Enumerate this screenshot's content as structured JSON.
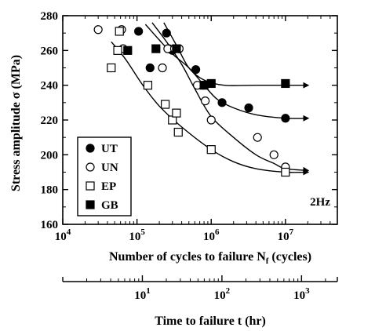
{
  "chart_data": {
    "type": "scatter",
    "title": "",
    "xlabel_text": "Number of cycles to failure N",
    "xlabel_sub": "f",
    "xlabel_unit": " (cycles)",
    "ylabel": "Stress amplitude σ (MPa)",
    "x_scale": "log",
    "xlim": [
      10000,
      50000000
    ],
    "ylim": [
      160,
      280
    ],
    "yticks": [
      160,
      180,
      200,
      220,
      240,
      260,
      280
    ],
    "xticks": [
      {
        "value": 10000,
        "base": "10",
        "exp": "4"
      },
      {
        "value": 100000,
        "base": "10",
        "exp": "5"
      },
      {
        "value": 1000000,
        "base": "10",
        "exp": "6"
      },
      {
        "value": 10000000,
        "base": "10",
        "exp": "7"
      }
    ],
    "annotation": "2Hz",
    "legend_position": "bottom-left",
    "series": [
      {
        "name": "UT",
        "marker": "filled-circle",
        "points": [
          [
            105000,
            271
          ],
          [
            250000,
            270
          ],
          [
            150000,
            250
          ],
          [
            270000,
            261
          ],
          [
            300000,
            260
          ],
          [
            620000,
            249
          ],
          [
            780000,
            240
          ],
          [
            1400000,
            230
          ],
          [
            3200000,
            227
          ],
          [
            10000000,
            221
          ]
        ],
        "runout": [
          false,
          false,
          false,
          false,
          false,
          false,
          false,
          false,
          false,
          true
        ],
        "curve": [
          [
            130000,
            275
          ],
          [
            200000,
            266
          ],
          [
            300000,
            258
          ],
          [
            500000,
            250
          ],
          [
            800000,
            240
          ],
          [
            1200000,
            232
          ],
          [
            2000000,
            227
          ],
          [
            4000000,
            223
          ],
          [
            10000000,
            221
          ],
          [
            20000000,
            221
          ]
        ]
      },
      {
        "name": "UN",
        "marker": "open-circle",
        "points": [
          [
            30000,
            272
          ],
          [
            62000,
            272
          ],
          [
            65000,
            261
          ],
          [
            220000,
            250
          ],
          [
            260000,
            261
          ],
          [
            320000,
            261
          ],
          [
            370000,
            261
          ],
          [
            650000,
            240
          ],
          [
            830000,
            231
          ],
          [
            1000000,
            220
          ],
          [
            4200000,
            210
          ],
          [
            7000000,
            200
          ],
          [
            10000000,
            193
          ]
        ],
        "runout": [
          false,
          false,
          false,
          false,
          false,
          false,
          false,
          false,
          false,
          false,
          false,
          false,
          true
        ],
        "curve": [
          [
            160000,
            276
          ],
          [
            250000,
            265
          ],
          [
            400000,
            252
          ],
          [
            600000,
            238
          ],
          [
            1000000,
            222
          ],
          [
            2000000,
            210
          ],
          [
            4000000,
            200
          ],
          [
            7000000,
            195
          ],
          [
            10000000,
            192
          ],
          [
            20000000,
            191
          ]
        ]
      },
      {
        "name": "EP",
        "marker": "open-square",
        "points": [
          [
            45000,
            250
          ],
          [
            55000,
            260
          ],
          [
            58000,
            271
          ],
          [
            140000,
            240
          ],
          [
            240000,
            229
          ],
          [
            300000,
            220
          ],
          [
            340000,
            224
          ],
          [
            360000,
            213
          ],
          [
            1000000,
            203
          ],
          [
            10000000,
            190
          ]
        ],
        "runout": [
          false,
          false,
          false,
          false,
          false,
          false,
          false,
          false,
          false,
          true
        ],
        "curve": [
          [
            45000,
            265
          ],
          [
            70000,
            255
          ],
          [
            120000,
            240
          ],
          [
            200000,
            228
          ],
          [
            400000,
            216
          ],
          [
            1000000,
            203
          ],
          [
            2000000,
            196
          ],
          [
            4000000,
            192
          ],
          [
            10000000,
            190
          ],
          [
            20000000,
            190
          ]
        ]
      },
      {
        "name": "GB",
        "marker": "filled-square",
        "points": [
          [
            75000,
            260
          ],
          [
            180000,
            261
          ],
          [
            340000,
            261
          ],
          [
            800000,
            240
          ],
          [
            1000000,
            241
          ],
          [
            10000000,
            241
          ]
        ],
        "runout": [
          false,
          false,
          false,
          false,
          false,
          true
        ],
        "curve": [
          [
            230000,
            276
          ],
          [
            350000,
            262
          ],
          [
            500000,
            250
          ],
          [
            800000,
            243
          ],
          [
            1500000,
            240
          ],
          [
            4000000,
            240
          ],
          [
            20000000,
            240
          ]
        ]
      }
    ],
    "secondary_axis": {
      "xlabel": "Time to failure t (hr)",
      "scale": "log",
      "note": "time axis aligned to cycles at 2 Hz",
      "ticks": [
        {
          "value": 10,
          "base": "10",
          "exp": "1"
        },
        {
          "value": 100,
          "base": "10",
          "exp": "2"
        },
        {
          "value": 1000,
          "base": "10",
          "exp": "3"
        }
      ]
    }
  }
}
